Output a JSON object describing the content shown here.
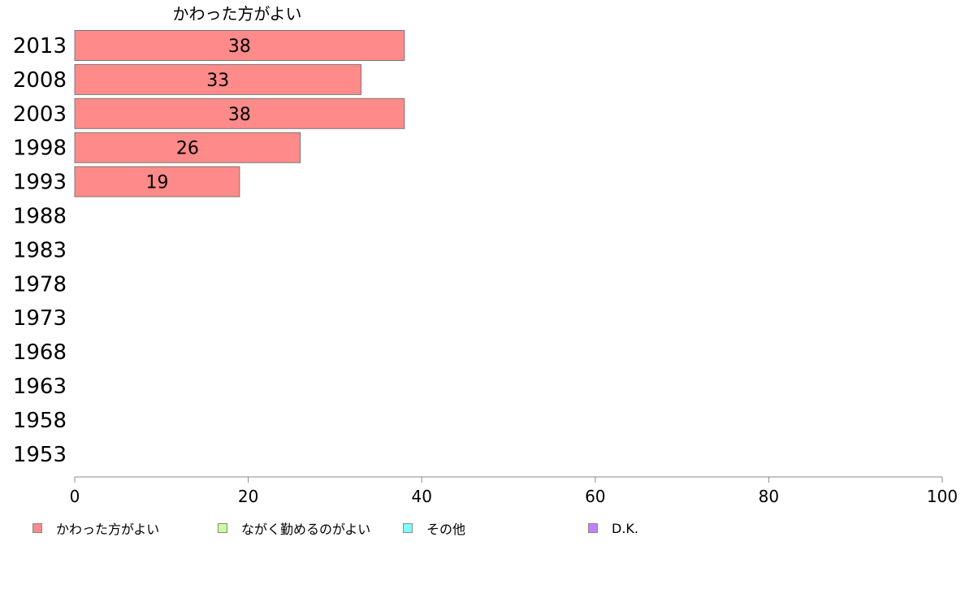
{
  "chart_data": {
    "type": "bar",
    "orientation": "horizontal",
    "series_title": "かわった方がよい",
    "categories": [
      "2013",
      "2008",
      "2003",
      "1998",
      "1993",
      "1988",
      "1983",
      "1978",
      "1973",
      "1968",
      "1963",
      "1958",
      "1953"
    ],
    "series": [
      {
        "name": "かわった方がよい",
        "color": "#ff8a8a",
        "values": [
          38,
          33,
          38,
          26,
          19,
          null,
          null,
          null,
          null,
          null,
          null,
          null,
          null
        ],
        "value_labels": [
          "38",
          "33",
          "38",
          "26",
          "19",
          "",
          "",
          "",
          "",
          "",
          "",
          "",
          ""
        ]
      }
    ],
    "xlim": [
      0,
      100
    ],
    "xticks": [
      "0",
      "20",
      "40",
      "60",
      "80",
      "100"
    ],
    "grid": false,
    "legend_position": "bottom",
    "legend": [
      {
        "label": "かわった方がよい",
        "color": "#ff8a8a"
      },
      {
        "label": "ながく勤めるのがよい",
        "color": "#ccff99"
      },
      {
        "label": "その他",
        "color": "#80ffff"
      },
      {
        "label": "D.K.",
        "color": "#c080ff"
      }
    ]
  }
}
